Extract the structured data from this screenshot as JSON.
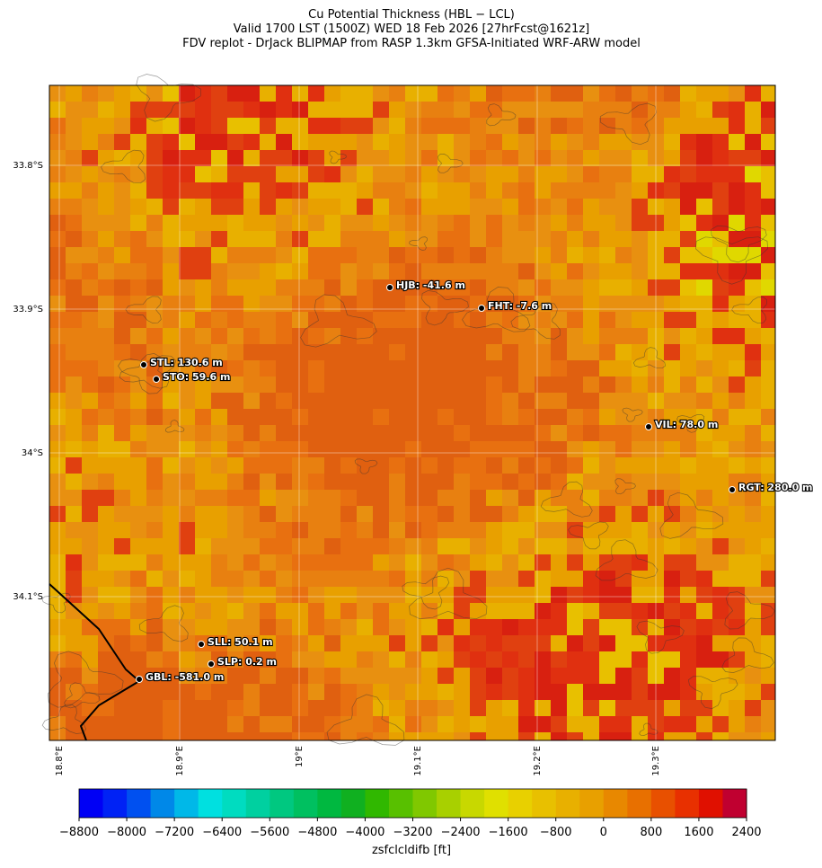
{
  "title": [
    "Cu Potential Thickness (HBL − LCL)",
    "Valid 1700 LST (1500Z) WED 18 Feb 2026 [27hrFcst@1621z]",
    "FDV replot - DrJack BLIPMAP from RASP 1.3km GFSA-Initiated WRF-ARW model"
  ],
  "stations": [
    {
      "label": "HJB: -41.6 m"
    },
    {
      "label": "FHT: -7.6 m"
    },
    {
      "label": "STL: 130.6 m"
    },
    {
      "label": "STO: 59.6 m"
    },
    {
      "label": "VIL: 78.0 m"
    },
    {
      "label": "RGT: 280.0 m"
    },
    {
      "label": "SLL: 50.1 m"
    },
    {
      "label": "SLP: 0.2 m"
    },
    {
      "label": "GBL: -581.0 m"
    }
  ],
  "lat_labels": [
    "33.8°S",
    "33.9°S",
    "34°S",
    "34.1°S"
  ],
  "lon_labels": [
    "18.8°E",
    "18.9°E",
    "19°E",
    "19.1°E",
    "19.2°E",
    "19.3°E"
  ],
  "colorbar": {
    "label": "zsfclcldifb [ft]",
    "lim": [
      -8800,
      2400
    ],
    "ticks": [
      {
        "value": -8800,
        "label": "−8800"
      },
      {
        "value": -8000,
        "label": "−8000"
      },
      {
        "value": -7200,
        "label": "−7200"
      },
      {
        "value": -6400,
        "label": "−6400"
      },
      {
        "value": -5600,
        "label": "−5600"
      },
      {
        "value": -4800,
        "label": "−4800"
      },
      {
        "value": -4000,
        "label": "−4000"
      },
      {
        "value": -3200,
        "label": "−3200"
      },
      {
        "value": -2400,
        "label": "−2400"
      },
      {
        "value": -1600,
        "label": "−1600"
      },
      {
        "value": -800,
        "label": "−800"
      },
      0,
      800,
      1600,
      2400
    ],
    "colors": [
      "#0000f5",
      "#0022f5",
      "#0050f0",
      "#0088e8",
      "#00b8e8",
      "#00e0e0",
      "#00dcc0",
      "#00d0a0",
      "#00c880",
      "#00c060",
      "#00b840",
      "#10b020",
      "#30b800",
      "#58c000",
      "#80c800",
      "#a8d000",
      "#c8d800",
      "#e0e000",
      "#e8d000",
      "#e8c000",
      "#e8b000",
      "#e8a000",
      "#e88800",
      "#e87000",
      "#e85000",
      "#e83000",
      "#e01000",
      "#c00030"
    ]
  }
}
